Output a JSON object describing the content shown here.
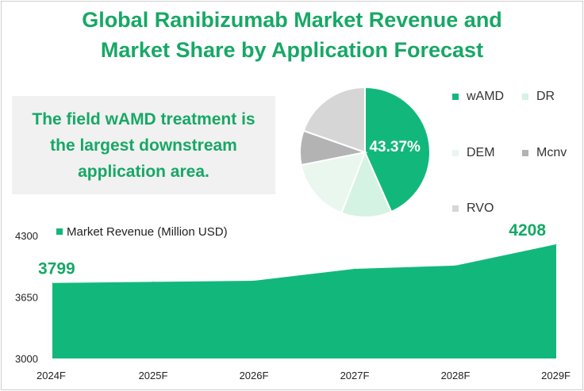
{
  "title": {
    "line1": "Global Ranibizumab Market Revenue and",
    "line2": "Market Share by Application Forecast"
  },
  "callout": {
    "line1": "The field wAMD treatment is",
    "line2": "the largest downstream",
    "line3": "application area."
  },
  "chart_data": [
    {
      "type": "pie",
      "title": "",
      "labels": [
        "wAMD",
        "DR",
        "DEM",
        "Mcnv",
        "RVO"
      ],
      "values": [
        43.37,
        12.5,
        16.0,
        8.5,
        19.63
      ],
      "colors": [
        "#12b87b",
        "#d4f3e3",
        "#e9f7ef",
        "#b3b3b3",
        "#d6d6d6"
      ],
      "data_label": "43.37%",
      "legend_position": "right"
    },
    {
      "type": "area",
      "title": "",
      "series": [
        {
          "name": "Market Revenue (Million USD)",
          "values": [
            3799,
            3810,
            3822,
            3948,
            3982,
            4208
          ],
          "color": "#12b87b"
        }
      ],
      "categories": [
        "2024F",
        "2025F",
        "2026F",
        "2027F",
        "2028F",
        "2029F"
      ],
      "ylim": [
        3000,
        4300
      ],
      "yticks": [
        3000,
        3650,
        4300
      ],
      "data_labels": [
        {
          "index": 0,
          "text": "3799"
        },
        {
          "index": 5,
          "text": "4208"
        }
      ],
      "legend_position": "top-left",
      "grid": false
    }
  ]
}
